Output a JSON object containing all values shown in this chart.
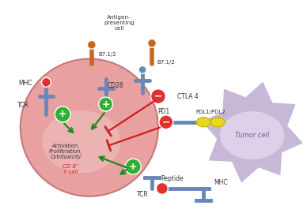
{
  "bg_color": "#ffffff",
  "antigen_color": "#f5b87a",
  "antigen_edge": "#e8a060",
  "t_cell_color": "#e8a0a0",
  "t_cell_edge": "#c87878",
  "t_cell_inner_color": "#f0c0c0",
  "tumor_color": "#c8b8d8",
  "tumor_edge": "#b8a8c8",
  "tumor_inner_color": "#ddd0e8",
  "receptor_blue": "#6888b8",
  "receptor_orange": "#c86820",
  "green_circle": "#30b030",
  "red_circle": "#e03030",
  "yellow_ellipse": "#e8d820",
  "yellow_edge": "#c8b800",
  "green_arrow": "#208820",
  "red_arrow": "#cc2020",
  "text_dark": "#333333",
  "text_red": "#cc2222",
  "antigen_label": "Antigen-\npresenting\ncell",
  "mhc_label": "MHC",
  "tcr_label": "TCR",
  "b712_left_label": "B7.1/2",
  "b712_right_label": "B7.1/2",
  "cd28_label": "CD28",
  "ctla4_label": "CTLA 4",
  "pd1_label": "PD1",
  "pdl_label": "PDL1/PDL2",
  "activation_label": "Activation,\nProliferation,\nCytotoxicity",
  "cd8_label": "CD 8⁺\nT cell",
  "tumor_label": "Tumor cell",
  "peptide_label": "Peptide",
  "mhc_bottom_label": "MHC"
}
